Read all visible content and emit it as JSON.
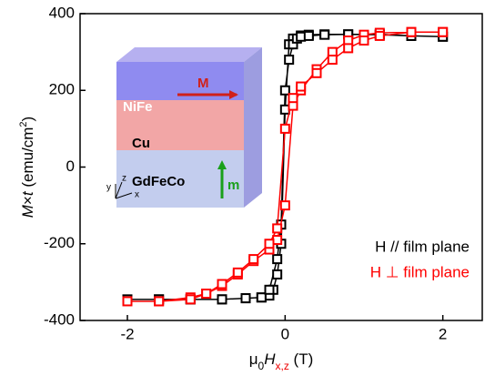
{
  "chart_data": {
    "type": "scatter",
    "x_label": [
      "μ",
      "0",
      "H",
      "x,z",
      " (T)"
    ],
    "y_label": [
      "M",
      "×",
      "t",
      " (emu/cm",
      "2",
      ")"
    ],
    "xlim": [
      -2.6,
      2.5
    ],
    "xticks": [
      -2,
      0,
      2
    ],
    "ylim": [
      -400,
      400
    ],
    "yticks": [
      -400,
      -200,
      0,
      200,
      400
    ],
    "legend": "lower right",
    "series": [
      {
        "name": "H // film plane",
        "color": "#000000",
        "x": [
          2.0,
          1.6,
          1.2,
          0.8,
          0.5,
          0.3,
          0.2,
          0.1,
          0.05,
          0.0,
          -0.05,
          -0.1,
          -0.15,
          -0.2,
          -0.3,
          -0.5,
          -0.8,
          -1.2,
          -1.6,
          -2.0,
          -1.6,
          -1.2,
          -0.8,
          -0.5,
          -0.3,
          -0.2,
          -0.1,
          -0.05,
          0.0,
          0.05,
          0.1,
          0.15,
          0.2,
          0.3,
          0.5,
          0.8,
          1.2,
          1.6,
          2.0
        ],
        "values": [
          340,
          342,
          345,
          346,
          346,
          345,
          343,
          335,
          320,
          150,
          -200,
          -280,
          -320,
          -335,
          -340,
          -342,
          -345,
          -345,
          -345,
          -345,
          -345,
          -345,
          -345,
          -342,
          -340,
          -320,
          -240,
          -150,
          200,
          280,
          320,
          335,
          340,
          342,
          345,
          346,
          346,
          342,
          340
        ]
      },
      {
        "name": "H ⊥ film plane",
        "color": "#ff0000",
        "x": [
          2.0,
          1.6,
          1.2,
          1.0,
          0.8,
          0.6,
          0.4,
          0.2,
          0.1,
          0.0,
          -0.1,
          -0.2,
          -0.4,
          -0.6,
          -0.8,
          -1.0,
          -1.2,
          -1.6,
          -2.0,
          -1.6,
          -1.2,
          -1.0,
          -0.8,
          -0.6,
          -0.4,
          -0.2,
          -0.1,
          0.0,
          0.1,
          0.2,
          0.4,
          0.6,
          0.8,
          1.0,
          1.2,
          1.6,
          2.0
        ],
        "values": [
          352,
          352,
          350,
          345,
          330,
          300,
          255,
          200,
          160,
          -100,
          -190,
          -215,
          -245,
          -280,
          -310,
          -330,
          -340,
          -350,
          -350,
          -350,
          -345,
          -330,
          -305,
          -275,
          -240,
          -200,
          -160,
          100,
          180,
          210,
          245,
          280,
          310,
          330,
          342,
          352,
          352
        ]
      }
    ]
  },
  "inset": {
    "layers": [
      "NiFe",
      "Cu",
      "GdFeCo"
    ],
    "arrows": [
      "M",
      "m"
    ],
    "axes": [
      "x",
      "y",
      "z"
    ]
  }
}
